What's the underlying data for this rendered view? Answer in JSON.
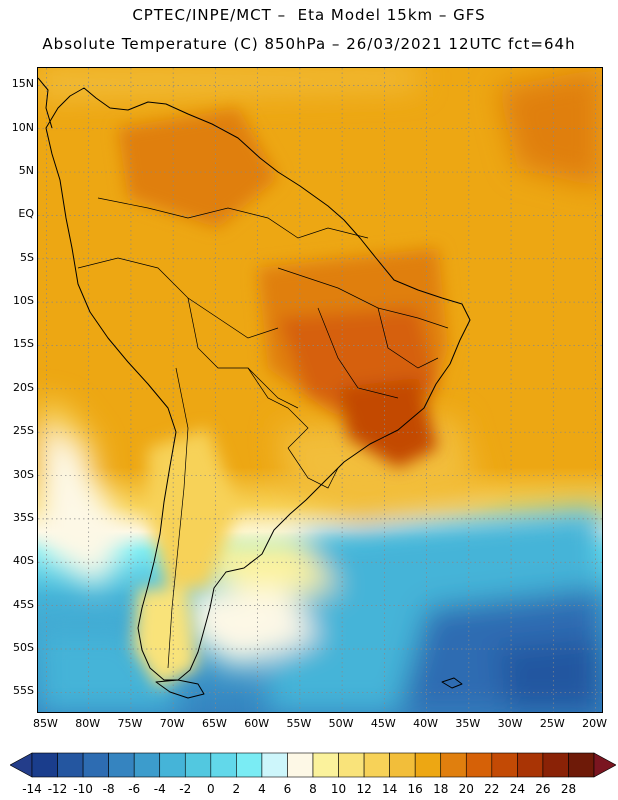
{
  "title_line1": "CPTEC/INPE/MCT –  Eta Model 15km – GFS",
  "title_line2": "Absolute Temperature (C) 850hPa – 26/03/2021 12UTC fct=64h",
  "map": {
    "lon_range": [
      -86,
      -19
    ],
    "lat_range": [
      -57.5,
      17
    ],
    "lat_labels": [
      "15N",
      "10N",
      "5N",
      "EQ",
      "5S",
      "10S",
      "15S",
      "20S",
      "25S",
      "30S",
      "35S",
      "40S",
      "45S",
      "50S",
      "55S"
    ],
    "lat_values": [
      15,
      10,
      5,
      0,
      -5,
      -10,
      -15,
      -20,
      -25,
      -30,
      -35,
      -40,
      -45,
      -50,
      -55
    ],
    "lon_labels": [
      "85W",
      "80W",
      "75W",
      "70W",
      "65W",
      "60W",
      "55W",
      "50W",
      "45W",
      "40W",
      "35W",
      "30W",
      "25W",
      "20W"
    ],
    "lon_values": [
      -85,
      -80,
      -75,
      -70,
      -65,
      -60,
      -55,
      -50,
      -45,
      -40,
      -35,
      -30,
      -25,
      -20
    ],
    "grid": true
  },
  "colorbar": {
    "labels": [
      "-14",
      "-12",
      "-10",
      "-8",
      "-6",
      "-4",
      "-2",
      "0",
      "2",
      "4",
      "6",
      "8",
      "10",
      "12",
      "14",
      "16",
      "18",
      "20",
      "22",
      "24",
      "26",
      "28"
    ],
    "colors": [
      "#1a3d8c",
      "#2456a0",
      "#2d6cb2",
      "#3584c0",
      "#3c9ccc",
      "#45b4d8",
      "#52c8e0",
      "#62d8ea",
      "#7aecf4",
      "#cdf6fb",
      "#fdf8e6",
      "#fbf29c",
      "#f9e37a",
      "#f7d258",
      "#f2be3a",
      "#eda713",
      "#e07f0e",
      "#d66107",
      "#c34a05",
      "#a93405",
      "#8a2206",
      "#6e1a08"
    ],
    "under_color": "#233d8a",
    "over_color": "#7a1520"
  }
}
